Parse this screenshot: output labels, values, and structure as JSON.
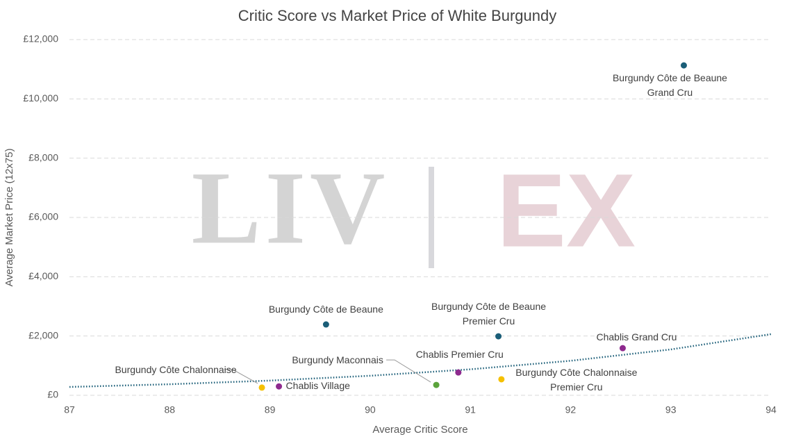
{
  "chart_data": {
    "type": "scatter",
    "title": "Critic Score vs Market Price of White Burgundy",
    "x_label": "Average Critic Score",
    "y_label": "Average Market Price (12x75)",
    "watermark": {
      "left": "LIV",
      "right": "EX"
    },
    "xlim": [
      87,
      94
    ],
    "xticks": [
      87,
      88,
      89,
      90,
      91,
      92,
      93,
      94
    ],
    "ylim": [
      0,
      12000
    ],
    "yticks": [
      {
        "value": 0,
        "label": "£0"
      },
      {
        "value": 2000,
        "label": "£2,000"
      },
      {
        "value": 4000,
        "label": "£4,000"
      },
      {
        "value": 6000,
        "label": "£6,000"
      },
      {
        "value": 8000,
        "label": "£8,000"
      },
      {
        "value": 10000,
        "label": "£10,000"
      },
      {
        "value": 12000,
        "label": "£12,000"
      }
    ],
    "grid": true,
    "series": [
      {
        "name": "Burgundy Côte de Beaune Grand Cru",
        "color": "#1b5e78",
        "x": [
          93.13
        ],
        "values": [
          11130
        ]
      },
      {
        "name": "Burgundy Côte de Beaune",
        "color": "#1b5e78",
        "x": [
          89.56
        ],
        "values": [
          2390
        ]
      },
      {
        "name": "Burgundy Côte de Beaune Premier Cru",
        "color": "#1b5e78",
        "x": [
          91.28
        ],
        "values": [
          1990
        ]
      },
      {
        "name": "Chablis Grand Cru",
        "color": "#8e2a8e",
        "x": [
          92.52
        ],
        "values": [
          1590
        ]
      },
      {
        "name": "Chablis Premier Cru",
        "color": "#8e2a8e",
        "x": [
          90.88
        ],
        "values": [
          770
        ]
      },
      {
        "name": "Burgundy Maconnais",
        "color": "#5ba33b",
        "x": [
          90.66
        ],
        "values": [
          350
        ]
      },
      {
        "name": "Burgundy Côte Chalonnaise Premier Cru",
        "color": "#f5c000",
        "x": [
          91.31
        ],
        "values": [
          540
        ]
      },
      {
        "name": "Burgundy Côte Chalonnaise",
        "color": "#f5c000",
        "x": [
          88.92
        ],
        "values": [
          260
        ]
      },
      {
        "name": "Chablis Village",
        "color": "#8e2a8e",
        "x": [
          89.09
        ],
        "values": [
          300
        ]
      }
    ],
    "trendline": {
      "color": "#1b5e78",
      "x": [
        87,
        88,
        89,
        90,
        91,
        92,
        93,
        94
      ],
      "values": [
        281,
        373,
        496,
        659,
        876,
        1164,
        1547,
        2062
      ]
    }
  }
}
